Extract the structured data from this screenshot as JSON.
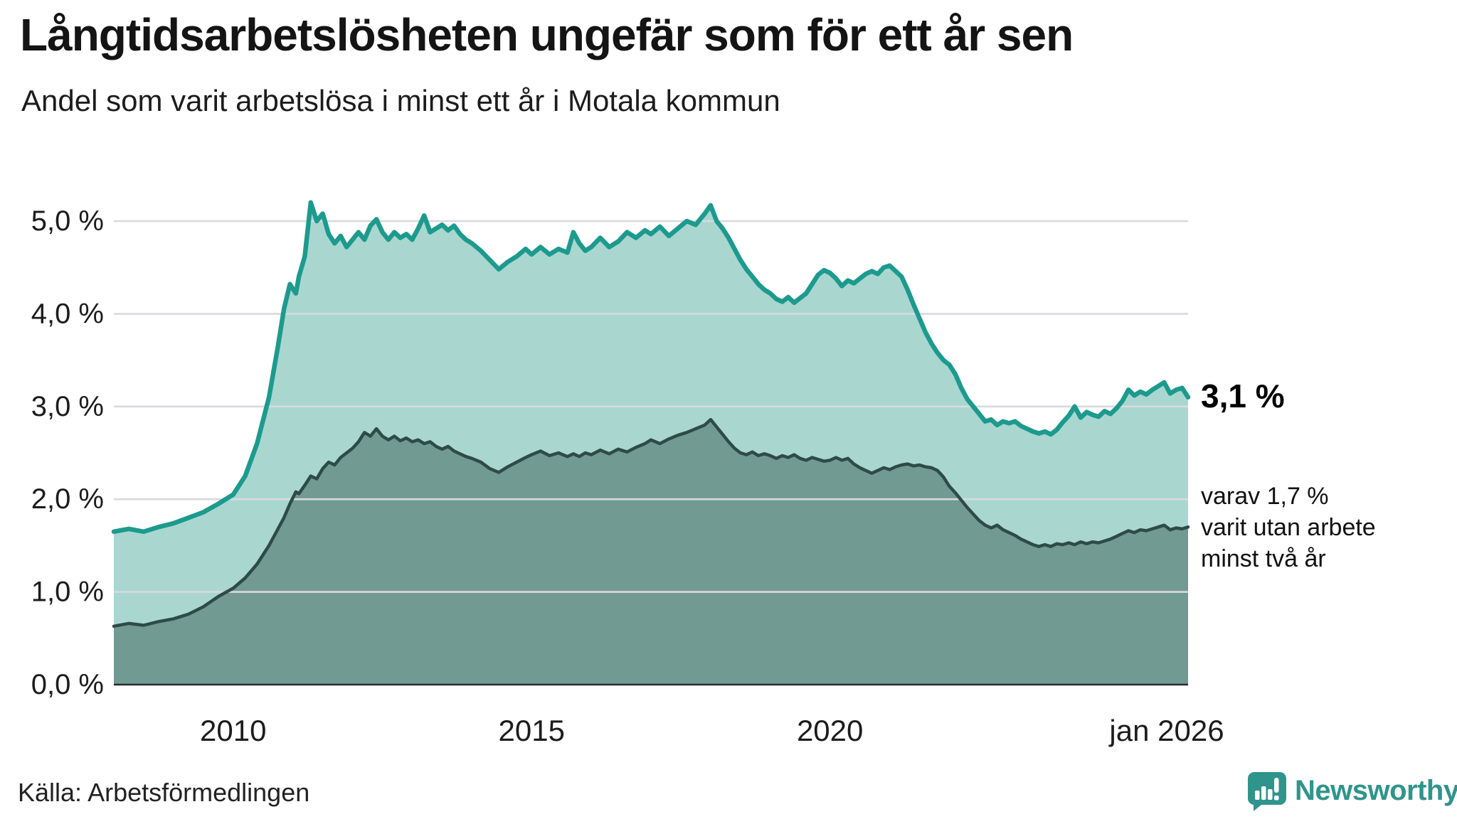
{
  "header": {
    "title": "Långtidsarbetslösheten ungefär som för ett år sen",
    "subtitle": "Andel som varit arbetslösa i minst ett år i Motala kommun"
  },
  "annotations": {
    "primary_end_label": "3,1 %",
    "secondary_lines": [
      "varav 1,7 %",
      "varit utan arbete",
      "minst två år"
    ]
  },
  "footer": {
    "source": "Källa: Arbetsförmedlingen",
    "brand_name": "Newsworthy"
  },
  "colors": {
    "line_primary": "#1d9a8e",
    "fill_primary": "#a9d7d0",
    "line_secondary": "#2e4b47",
    "fill_secondary": "#719a93",
    "gridline": "#d9d9de",
    "axis": "#2b2b2b",
    "tick_text": "#1c1c1c",
    "brand_teal": "#2f948c"
  },
  "chart_data": {
    "type": "area",
    "title": "Andel som varit arbetslösa i minst ett år i Motala kommun",
    "xlabel": "",
    "ylabel": "",
    "grid": true,
    "legend_position": "right-edge-annotations",
    "xlim": [
      2008.0,
      2026.0
    ],
    "ylim": [
      0.0,
      5.45
    ],
    "y_ticks": [
      {
        "v": 5.0,
        "label": "5,0 %"
      },
      {
        "v": 4.0,
        "label": "4,0 %"
      },
      {
        "v": 3.0,
        "label": "3,0 %"
      },
      {
        "v": 2.0,
        "label": "2,0 %"
      },
      {
        "v": 1.0,
        "label": "1,0 %"
      },
      {
        "v": 0.0,
        "label": "0,0 %"
      }
    ],
    "x_ticks": [
      {
        "v": 2010,
        "label": "2010"
      },
      {
        "v": 2015,
        "label": "2015"
      },
      {
        "v": 2020,
        "label": "2020"
      },
      {
        "v": 2026,
        "label": "jan 2026"
      }
    ],
    "x": [
      2008.0,
      2008.25,
      2008.5,
      2008.75,
      2009.0,
      2009.25,
      2009.5,
      2009.75,
      2010.0,
      2010.2,
      2010.4,
      2010.6,
      2010.75,
      2010.85,
      2010.95,
      2011.05,
      2011.1,
      2011.2,
      2011.3,
      2011.4,
      2011.5,
      2011.6,
      2011.7,
      2011.8,
      2011.9,
      2012.0,
      2012.1,
      2012.2,
      2012.3,
      2012.4,
      2012.5,
      2012.6,
      2012.7,
      2012.8,
      2012.9,
      2013.0,
      2013.1,
      2013.2,
      2013.3,
      2013.4,
      2013.5,
      2013.6,
      2013.7,
      2013.8,
      2013.9,
      2014.0,
      2014.15,
      2014.3,
      2014.45,
      2014.6,
      2014.75,
      2014.9,
      2015.0,
      2015.15,
      2015.3,
      2015.45,
      2015.6,
      2015.7,
      2015.8,
      2015.9,
      2016.0,
      2016.15,
      2016.3,
      2016.45,
      2016.6,
      2016.75,
      2016.9,
      2017.0,
      2017.15,
      2017.3,
      2017.45,
      2017.6,
      2017.75,
      2017.9,
      2018.0,
      2018.1,
      2018.2,
      2018.3,
      2018.4,
      2018.5,
      2018.6,
      2018.7,
      2018.8,
      2018.9,
      2019.0,
      2019.1,
      2019.2,
      2019.3,
      2019.4,
      2019.5,
      2019.6,
      2019.7,
      2019.8,
      2019.9,
      2020.0,
      2020.1,
      2020.2,
      2020.3,
      2020.4,
      2020.5,
      2020.6,
      2020.7,
      2020.8,
      2020.9,
      2021.0,
      2021.1,
      2021.2,
      2021.3,
      2021.4,
      2021.5,
      2021.6,
      2021.7,
      2021.8,
      2021.9,
      2022.0,
      2022.1,
      2022.2,
      2022.3,
      2022.4,
      2022.5,
      2022.6,
      2022.7,
      2022.8,
      2022.9,
      2023.0,
      2023.1,
      2023.2,
      2023.3,
      2023.4,
      2023.5,
      2023.6,
      2023.7,
      2023.8,
      2023.9,
      2024.0,
      2024.1,
      2024.2,
      2024.3,
      2024.4,
      2024.5,
      2024.6,
      2024.7,
      2024.8,
      2024.9,
      2025.0,
      2025.1,
      2025.2,
      2025.3,
      2025.4,
      2025.5,
      2025.6,
      2025.7,
      2025.8,
      2025.9,
      2026.0
    ],
    "series": [
      {
        "name": "Andel arbetslösa minst ett år",
        "end_value_label": "3,1 %",
        "values": [
          1.65,
          1.68,
          1.65,
          1.7,
          1.74,
          1.8,
          1.86,
          1.95,
          2.05,
          2.25,
          2.6,
          3.1,
          3.65,
          4.05,
          4.32,
          4.22,
          4.4,
          4.62,
          5.2,
          5.0,
          5.08,
          4.86,
          4.76,
          4.84,
          4.72,
          4.8,
          4.88,
          4.8,
          4.95,
          5.02,
          4.88,
          4.8,
          4.88,
          4.82,
          4.86,
          4.8,
          4.92,
          5.06,
          4.88,
          4.92,
          4.96,
          4.9,
          4.95,
          4.86,
          4.8,
          4.76,
          4.68,
          4.58,
          4.48,
          4.56,
          4.62,
          4.7,
          4.64,
          4.72,
          4.64,
          4.7,
          4.66,
          4.88,
          4.76,
          4.68,
          4.72,
          4.82,
          4.72,
          4.78,
          4.88,
          4.82,
          4.9,
          4.86,
          4.94,
          4.84,
          4.92,
          5.0,
          4.96,
          5.08,
          5.17,
          5.0,
          4.92,
          4.82,
          4.7,
          4.58,
          4.48,
          4.4,
          4.32,
          4.26,
          4.22,
          4.16,
          4.13,
          4.18,
          4.12,
          4.17,
          4.22,
          4.32,
          4.42,
          4.47,
          4.44,
          4.38,
          4.3,
          4.36,
          4.33,
          4.38,
          4.43,
          4.46,
          4.43,
          4.5,
          4.52,
          4.46,
          4.4,
          4.26,
          4.1,
          3.95,
          3.8,
          3.68,
          3.58,
          3.5,
          3.45,
          3.35,
          3.2,
          3.08,
          3.0,
          2.92,
          2.84,
          2.86,
          2.8,
          2.84,
          2.82,
          2.84,
          2.79,
          2.76,
          2.73,
          2.71,
          2.73,
          2.7,
          2.75,
          2.83,
          2.9,
          3.0,
          2.88,
          2.94,
          2.91,
          2.89,
          2.95,
          2.92,
          2.98,
          3.06,
          3.18,
          3.12,
          3.16,
          3.13,
          3.18,
          3.22,
          3.26,
          3.14,
          3.18,
          3.2,
          3.1
        ]
      },
      {
        "name": "varav arbetslösa minst två år",
        "end_value_label": "1,7 %",
        "values": [
          0.63,
          0.66,
          0.64,
          0.68,
          0.71,
          0.76,
          0.84,
          0.95,
          1.04,
          1.15,
          1.3,
          1.5,
          1.68,
          1.8,
          1.95,
          2.08,
          2.06,
          2.15,
          2.25,
          2.22,
          2.33,
          2.4,
          2.37,
          2.45,
          2.5,
          2.55,
          2.62,
          2.72,
          2.68,
          2.76,
          2.68,
          2.64,
          2.68,
          2.63,
          2.66,
          2.62,
          2.64,
          2.6,
          2.62,
          2.57,
          2.54,
          2.57,
          2.52,
          2.49,
          2.46,
          2.44,
          2.4,
          2.33,
          2.29,
          2.35,
          2.4,
          2.45,
          2.48,
          2.52,
          2.47,
          2.5,
          2.46,
          2.49,
          2.46,
          2.5,
          2.48,
          2.53,
          2.49,
          2.54,
          2.51,
          2.56,
          2.6,
          2.64,
          2.6,
          2.65,
          2.69,
          2.72,
          2.76,
          2.8,
          2.86,
          2.78,
          2.7,
          2.62,
          2.55,
          2.5,
          2.48,
          2.51,
          2.47,
          2.49,
          2.47,
          2.44,
          2.47,
          2.45,
          2.48,
          2.44,
          2.42,
          2.45,
          2.43,
          2.41,
          2.42,
          2.45,
          2.42,
          2.44,
          2.38,
          2.34,
          2.31,
          2.28,
          2.31,
          2.34,
          2.32,
          2.35,
          2.37,
          2.38,
          2.36,
          2.37,
          2.35,
          2.34,
          2.31,
          2.24,
          2.14,
          2.07,
          1.99,
          1.91,
          1.84,
          1.77,
          1.72,
          1.69,
          1.72,
          1.67,
          1.64,
          1.61,
          1.57,
          1.54,
          1.51,
          1.49,
          1.51,
          1.49,
          1.52,
          1.51,
          1.53,
          1.51,
          1.54,
          1.52,
          1.54,
          1.53,
          1.55,
          1.57,
          1.6,
          1.63,
          1.66,
          1.64,
          1.67,
          1.66,
          1.68,
          1.7,
          1.72,
          1.67,
          1.69,
          1.68,
          1.7
        ]
      }
    ]
  }
}
